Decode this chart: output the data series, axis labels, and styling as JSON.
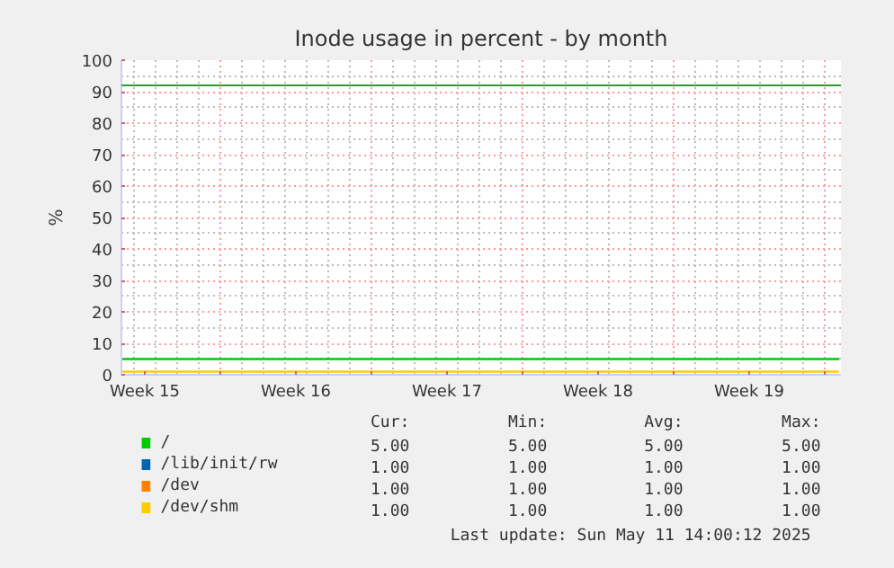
{
  "chart_data": {
    "type": "line",
    "title": "Inode usage in percent - by month",
    "ylabel": "%",
    "xlim": [
      "2025-04-09T10:00",
      "2025-05-12T18:00"
    ],
    "ylim": [
      0,
      100
    ],
    "yticks": [
      0,
      10,
      20,
      30,
      40,
      50,
      60,
      70,
      80,
      90,
      100
    ],
    "xticks": [
      {
        "value": "2025-04-10T12:00",
        "label": "Week 15"
      },
      {
        "value": "2025-04-14",
        "label": null
      },
      {
        "value": "2025-04-17T12:00",
        "label": "Week 16"
      },
      {
        "value": "2025-04-21",
        "label": null
      },
      {
        "value": "2025-04-24T12:00",
        "label": "Week 17"
      },
      {
        "value": "2025-04-28",
        "label": null
      },
      {
        "value": "2025-05-01T12:00",
        "label": "Week 18"
      },
      {
        "value": "2025-05-05",
        "label": null
      },
      {
        "value": "2025-05-08T12:00",
        "label": "Week 19"
      },
      {
        "value": "2025-05-12",
        "label": null
      }
    ],
    "x": [
      "2025-04-09T10:00",
      "2025-05-12T16:00"
    ],
    "series": [
      {
        "name": "/",
        "color": "#00cc00",
        "values": [
          5,
          5
        ]
      },
      {
        "name": "/lib/init/rw",
        "color": "#0066b3",
        "values": [
          null,
          null
        ]
      },
      {
        "name": "/dev",
        "color": "#ff8000",
        "values": [
          null,
          null
        ]
      },
      {
        "name": "/dev/shm",
        "color": "#ffcc00",
        "values": [
          1,
          1
        ]
      }
    ],
    "ref_lines": [
      {
        "axis": "y",
        "value": 92,
        "color": "#339933"
      }
    ],
    "grid": true,
    "legend": "bottom",
    "line_style": "solid",
    "marker": "none",
    "annotations": [
      "Cur:",
      "Min:",
      "Avg:",
      "Max:",
      "5.00",
      "5.00",
      "5.00",
      "5.00",
      "1.00",
      "1.00",
      "1.00",
      "1.00",
      "1.00",
      "1.00",
      "1.00",
      "1.00",
      "1.00",
      "1.00",
      "1.00",
      "1.00",
      "Last update:  Sun May 11 14:00:12 2025"
    ]
  }
}
